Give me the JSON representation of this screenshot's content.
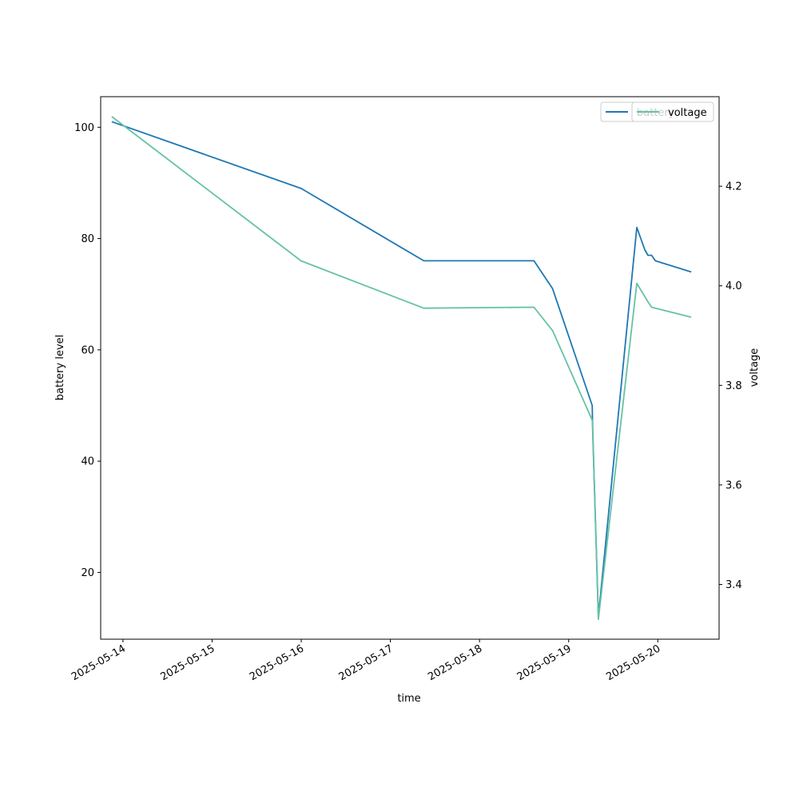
{
  "chart_data": {
    "type": "line",
    "xlabel": "time",
    "ylabel_left": "battery level",
    "ylabel_right": "voltage",
    "x_tick_labels": [
      "2025-05-14",
      "2025-05-15",
      "2025-05-16",
      "2025-05-17",
      "2025-05-18",
      "2025-05-19",
      "2025-05-20"
    ],
    "y_left_ticks": [
      "20",
      "40",
      "60",
      "80",
      "100"
    ],
    "y_right_ticks": [
      "3.4",
      "3.6",
      "3.8",
      "4.0",
      "4.2"
    ],
    "y_left_lim": [
      8,
      105.5
    ],
    "y_right_lim": [
      3.29,
      4.38
    ],
    "x_lim": [
      "2025-05-13 18:00",
      "2025-05-20 16:30"
    ],
    "grid": false,
    "legend": {
      "placement": "top-right",
      "entries": [
        "battery",
        "voltage"
      ],
      "note": "the two legend boxes overlap; the voltage legend covers part of the battery label"
    },
    "series": [
      {
        "name": "battery",
        "axis": "left",
        "color": "#1f77b4",
        "points": [
          [
            "2025-05-13 21:00",
            101
          ],
          [
            "2025-05-16 00:00",
            89
          ],
          [
            "2025-05-17 09:00",
            76
          ],
          [
            "2025-05-18 14:40",
            76
          ],
          [
            "2025-05-18 19:40",
            71
          ],
          [
            "2025-05-19 06:20",
            50
          ],
          [
            "2025-05-19 06:30",
            45
          ],
          [
            "2025-05-19 08:00",
            12
          ],
          [
            "2025-05-19 18:20",
            82
          ],
          [
            "2025-05-19 20:30",
            78
          ],
          [
            "2025-05-19 21:20",
            77
          ],
          [
            "2025-05-19 22:20",
            77
          ],
          [
            "2025-05-19 23:20",
            76
          ],
          [
            "2025-05-20 09:00",
            74
          ]
        ]
      },
      {
        "name": "voltage",
        "axis": "right",
        "color": "#66c2a5",
        "points": [
          [
            "2025-05-13 21:00",
            4.34
          ],
          [
            "2025-05-16 00:00",
            4.05
          ],
          [
            "2025-05-17 09:00",
            3.955
          ],
          [
            "2025-05-18 14:40",
            3.957
          ],
          [
            "2025-05-18 19:40",
            3.91
          ],
          [
            "2025-05-19 06:20",
            3.73
          ],
          [
            "2025-05-19 06:30",
            3.71
          ],
          [
            "2025-05-19 08:00",
            3.33
          ],
          [
            "2025-05-19 18:20",
            4.005
          ],
          [
            "2025-05-19 21:20",
            3.968
          ],
          [
            "2025-05-19 22:20",
            3.957
          ],
          [
            "2025-05-20 09:00",
            3.937
          ]
        ]
      }
    ]
  }
}
